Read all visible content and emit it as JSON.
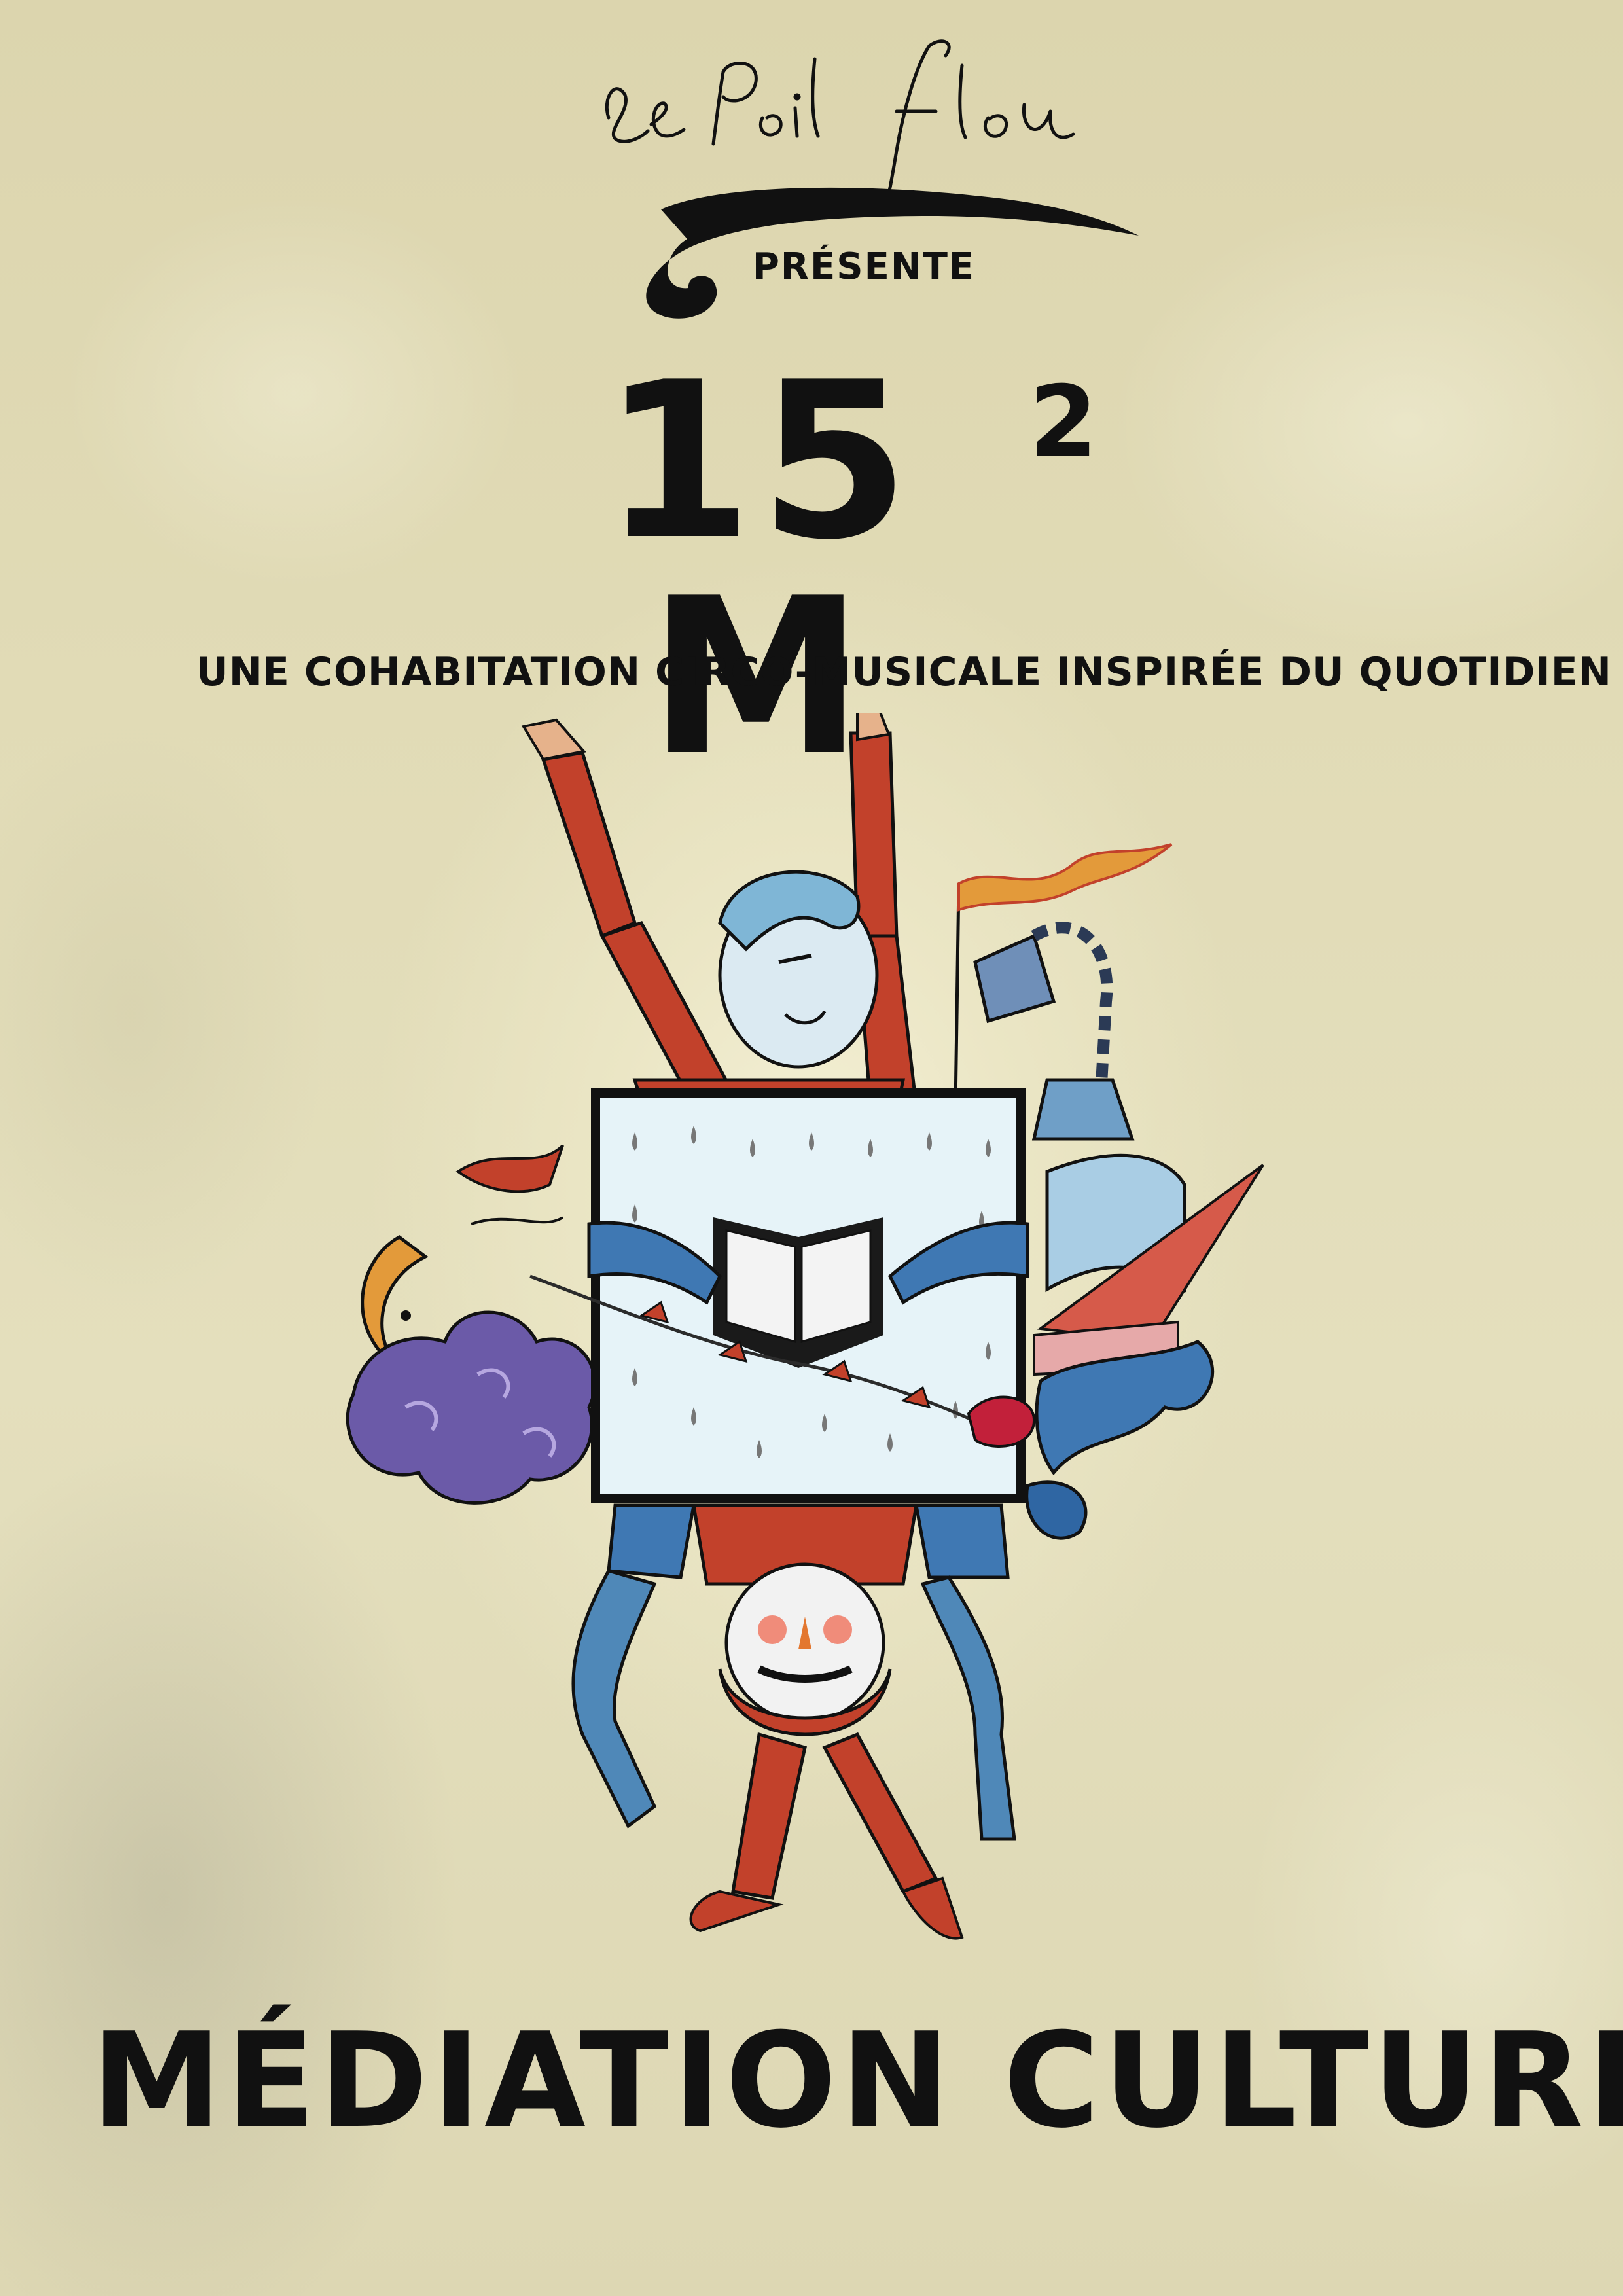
{
  "logo": {
    "text": "Le Poil Flou"
  },
  "presents": "PRÉSENTE",
  "title": {
    "main": "15 M",
    "superscript": "2"
  },
  "subtitle": "UNE COHABITATION CIRCO-MUSICALE INSPIRÉE DU QUOTIDIEN",
  "footer": "MÉDIATION CULTURELLE",
  "colors": {
    "background": "#e4dfbd",
    "ink": "#111111",
    "red": "#c2412b",
    "blue": "#4f88b8",
    "light_blue": "#a9cde4",
    "purple": "#6b5aa8",
    "orange": "#e39a3a"
  }
}
